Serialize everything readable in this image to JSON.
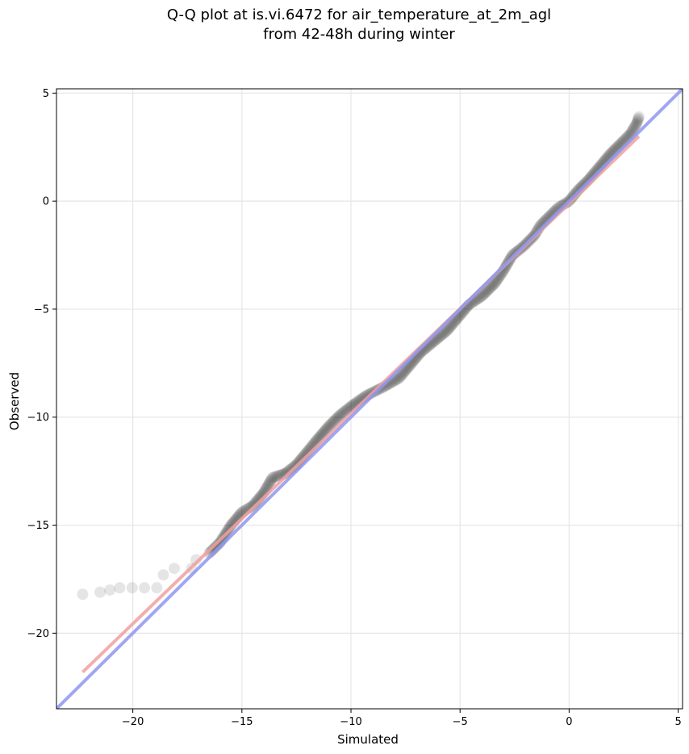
{
  "chart_data": {
    "type": "scatter",
    "title_line1": "Q-Q plot at is.vi.6472 for air_temperature_at_2m_agl",
    "title_line2": "from 42-48h during winter",
    "xlabel": "Simulated",
    "ylabel": "Observed",
    "xlim": [
      -23.5,
      5.2
    ],
    "ylim": [
      -23.5,
      5.2
    ],
    "x_ticks": [
      -20,
      -15,
      -10,
      -5,
      0,
      5
    ],
    "y_ticks": [
      -20,
      -15,
      -10,
      -5,
      0,
      5
    ],
    "x_tick_labels": [
      "−20",
      "−15",
      "−10",
      "−5",
      "0",
      "5"
    ],
    "y_tick_labels": [
      "−20",
      "−15",
      "−10",
      "−5",
      "0",
      "5"
    ],
    "grid": true,
    "identity_line": {
      "color": "#8f96ee",
      "from": [
        -23.5,
        -23.5
      ],
      "to": [
        5.2,
        5.2
      ]
    },
    "fit_line": {
      "color": "#f0a0a0",
      "from": [
        -22.3,
        -21.8
      ],
      "to": [
        3.2,
        3.0
      ]
    },
    "point_color": "#000000",
    "quantile_curve": [
      [
        -22.3,
        -18.2
      ],
      [
        -21.5,
        -18.1
      ],
      [
        -20.6,
        -17.9
      ],
      [
        -18.9,
        -17.9
      ],
      [
        -18.6,
        -17.3
      ],
      [
        -18.1,
        -17.0
      ],
      [
        -17.3,
        -17.0
      ],
      [
        -17.1,
        -16.6
      ],
      [
        -16.5,
        -16.3
      ],
      [
        -16.0,
        -15.8
      ],
      [
        -15.5,
        -15.0
      ],
      [
        -15.0,
        -14.4
      ],
      [
        -14.5,
        -14.1
      ],
      [
        -14.0,
        -13.5
      ],
      [
        -13.6,
        -12.8
      ],
      [
        -13.0,
        -12.6
      ],
      [
        -12.5,
        -12.2
      ],
      [
        -12.0,
        -11.6
      ],
      [
        -11.6,
        -11.1
      ],
      [
        -11.0,
        -10.4
      ],
      [
        -10.5,
        -9.9
      ],
      [
        -10.0,
        -9.5
      ],
      [
        -9.3,
        -9.0
      ],
      [
        -8.5,
        -8.6
      ],
      [
        -7.8,
        -8.2
      ],
      [
        -7.3,
        -7.6
      ],
      [
        -6.8,
        -7.0
      ],
      [
        -6.2,
        -6.5
      ],
      [
        -5.6,
        -6.0
      ],
      [
        -5.1,
        -5.4
      ],
      [
        -4.6,
        -4.8
      ],
      [
        -4.0,
        -4.4
      ],
      [
        -3.4,
        -3.8
      ],
      [
        -3.0,
        -3.2
      ],
      [
        -2.6,
        -2.5
      ],
      [
        -2.1,
        -2.1
      ],
      [
        -1.6,
        -1.6
      ],
      [
        -1.3,
        -1.1
      ],
      [
        -0.9,
        -0.7
      ],
      [
        -0.5,
        -0.3
      ],
      [
        0.0,
        0.0
      ],
      [
        0.4,
        0.5
      ],
      [
        0.9,
        1.0
      ],
      [
        1.4,
        1.6
      ],
      [
        1.9,
        2.2
      ],
      [
        2.4,
        2.7
      ],
      [
        2.8,
        3.1
      ],
      [
        3.1,
        3.6
      ],
      [
        3.2,
        3.9
      ]
    ]
  }
}
